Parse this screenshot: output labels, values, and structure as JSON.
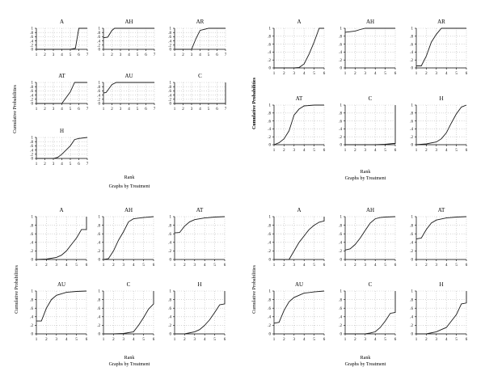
{
  "yticks": [
    "0",
    ".2",
    ".4",
    ".6",
    ".8",
    "1"
  ],
  "ylabel": "Cumulative Probabilities",
  "xlabel": "Rank",
  "footnote": "Graphs by Treatment",
  "line_color": "#1a1a1a",
  "grid_color": "#8c8c8c",
  "chart_data": [
    {
      "type": "line",
      "xticks": [
        "1",
        "2",
        "3",
        "4",
        "5",
        "6",
        "7"
      ],
      "xlim": [
        1,
        7
      ],
      "ylim": [
        0,
        1
      ],
      "grid": true,
      "series": [
        {
          "name": "A",
          "x": [
            1,
            2,
            3,
            4,
            5,
            5.6,
            6,
            7
          ],
          "y": [
            0,
            0,
            0,
            0,
            0,
            0.05,
            1,
            1
          ]
        },
        {
          "name": "AH",
          "x": [
            1,
            1.5,
            2,
            2.3,
            7
          ],
          "y": [
            0.55,
            0.58,
            0.9,
            1,
            1
          ]
        },
        {
          "name": "AR",
          "x": [
            1,
            2,
            3,
            3.5,
            4,
            5,
            7
          ],
          "y": [
            0,
            0,
            0,
            0.5,
            0.9,
            1,
            1
          ]
        },
        {
          "name": "AT",
          "x": [
            1,
            2,
            3,
            4,
            5,
            5.5,
            7
          ],
          "y": [
            0,
            0,
            0,
            0,
            0.55,
            1,
            1
          ]
        },
        {
          "name": "AU",
          "x": [
            1,
            1.3,
            2,
            2.5,
            7
          ],
          "y": [
            0.5,
            0.52,
            0.9,
            1,
            1
          ]
        },
        {
          "name": "C",
          "x": [
            1,
            2,
            3,
            4,
            5,
            6,
            7,
            7
          ],
          "y": [
            0,
            0,
            0,
            0,
            0,
            0,
            0,
            1
          ]
        },
        {
          "name": "H",
          "x": [
            1,
            2,
            3,
            3.5,
            4,
            5,
            5.5,
            6,
            7
          ],
          "y": [
            0,
            0,
            0,
            0.05,
            0.2,
            0.6,
            0.9,
            0.95,
            1
          ]
        }
      ]
    },
    {
      "type": "line",
      "xticks": [
        "1",
        "2",
        "3",
        "4",
        "5",
        "6"
      ],
      "xlim": [
        1,
        6
      ],
      "ylim": [
        0,
        1
      ],
      "grid": true,
      "series": [
        {
          "name": "A",
          "x": [
            1,
            2,
            3,
            3.5,
            4,
            4.5,
            5,
            5.5,
            6
          ],
          "y": [
            0,
            0,
            0,
            0.01,
            0.1,
            0.35,
            0.65,
            1,
            1
          ]
        },
        {
          "name": "AH",
          "x": [
            1,
            2,
            2.5,
            3,
            6
          ],
          "y": [
            0.9,
            0.93,
            0.97,
            1,
            1
          ]
        },
        {
          "name": "AR",
          "x": [
            1,
            1.5,
            2,
            2.5,
            3,
            3.5,
            4,
            6
          ],
          "y": [
            0.05,
            0.05,
            0.3,
            0.65,
            0.85,
            1,
            1,
            1
          ]
        },
        {
          "name": "AT",
          "x": [
            1,
            1.5,
            2,
            2.5,
            3,
            3.5,
            4,
            5,
            6
          ],
          "y": [
            0,
            0.05,
            0.15,
            0.35,
            0.75,
            0.9,
            0.98,
            1,
            1
          ]
        },
        {
          "name": "C",
          "x": [
            1,
            2,
            3,
            4,
            5,
            5.8,
            6,
            6
          ],
          "y": [
            0,
            0,
            0,
            0,
            0.01,
            0.03,
            0.03,
            1
          ]
        },
        {
          "name": "H",
          "x": [
            1,
            2,
            3,
            3.5,
            4,
            4.5,
            5,
            5.5,
            6
          ],
          "y": [
            0,
            0.02,
            0.07,
            0.15,
            0.3,
            0.55,
            0.78,
            0.95,
            1
          ]
        }
      ]
    },
    {
      "type": "line",
      "xticks": [
        "1",
        "2",
        "3",
        "4",
        "5",
        "6"
      ],
      "xlim": [
        1,
        6
      ],
      "ylim": [
        0,
        1
      ],
      "grid": true,
      "series": [
        {
          "name": "A",
          "x": [
            1,
            2,
            3,
            3.5,
            4,
            4.5,
            5,
            5.5,
            6,
            6
          ],
          "y": [
            0,
            0.01,
            0.05,
            0.1,
            0.2,
            0.35,
            0.5,
            0.7,
            0.7,
            1
          ]
        },
        {
          "name": "AH",
          "x": [
            1,
            1.5,
            2,
            2.5,
            3,
            3.5,
            4,
            5,
            6
          ],
          "y": [
            0,
            0.02,
            0.2,
            0.45,
            0.65,
            0.88,
            0.95,
            0.98,
            1
          ]
        },
        {
          "name": "AT",
          "x": [
            1,
            1.5,
            2,
            2.5,
            3,
            4,
            5,
            6
          ],
          "y": [
            0.62,
            0.63,
            0.78,
            0.88,
            0.93,
            0.97,
            0.99,
            1
          ]
        },
        {
          "name": "AU",
          "x": [
            1,
            1.5,
            2,
            2.5,
            3,
            4,
            5,
            6
          ],
          "y": [
            0.3,
            0.3,
            0.6,
            0.8,
            0.9,
            0.97,
            0.99,
            1
          ]
        },
        {
          "name": "C",
          "x": [
            1,
            2,
            3,
            4,
            4.5,
            5,
            5.5,
            6,
            6
          ],
          "y": [
            0,
            0,
            0.01,
            0.05,
            0.2,
            0.38,
            0.58,
            0.7,
            1
          ]
        },
        {
          "name": "H",
          "x": [
            1,
            2,
            3,
            3.5,
            4,
            4.5,
            5,
            5.5,
            6,
            6
          ],
          "y": [
            0,
            0,
            0.05,
            0.1,
            0.2,
            0.33,
            0.5,
            0.68,
            0.7,
            1
          ]
        }
      ]
    },
    {
      "type": "line",
      "xticks": [
        "1",
        "2",
        "3",
        "4",
        "5",
        "6"
      ],
      "xlim": [
        1,
        6
      ],
      "ylim": [
        0,
        1
      ],
      "grid": true,
      "series": [
        {
          "name": "A",
          "x": [
            1,
            2,
            2.5,
            3,
            3.5,
            4,
            4.5,
            5,
            5.5,
            6,
            6
          ],
          "y": [
            0,
            0,
            0,
            0.2,
            0.4,
            0.55,
            0.7,
            0.8,
            0.87,
            0.9,
            1
          ]
        },
        {
          "name": "AH",
          "x": [
            1,
            1.5,
            2,
            2.5,
            3,
            3.5,
            4,
            4.5,
            5,
            6
          ],
          "y": [
            0.22,
            0.25,
            0.35,
            0.5,
            0.68,
            0.85,
            0.95,
            0.98,
            0.99,
            1
          ]
        },
        {
          "name": "AT",
          "x": [
            1,
            1.5,
            2,
            2.5,
            3,
            4,
            5,
            6
          ],
          "y": [
            0.48,
            0.5,
            0.7,
            0.85,
            0.92,
            0.97,
            0.99,
            1
          ]
        },
        {
          "name": "AU",
          "x": [
            1,
            1.5,
            2,
            2.5,
            3,
            4,
            5,
            6
          ],
          "y": [
            0.25,
            0.27,
            0.55,
            0.75,
            0.85,
            0.95,
            0.98,
            1
          ]
        },
        {
          "name": "C",
          "x": [
            1,
            2,
            3,
            3.5,
            4,
            4.5,
            5,
            5.5,
            6,
            6
          ],
          "y": [
            0,
            0,
            0,
            0.02,
            0.05,
            0.15,
            0.3,
            0.48,
            0.5,
            1
          ]
        },
        {
          "name": "H",
          "x": [
            1,
            2,
            3,
            3.5,
            4,
            4.5,
            5,
            5.5,
            6,
            6
          ],
          "y": [
            0,
            0,
            0.05,
            0.1,
            0.15,
            0.3,
            0.45,
            0.7,
            0.72,
            1
          ]
        }
      ]
    }
  ]
}
